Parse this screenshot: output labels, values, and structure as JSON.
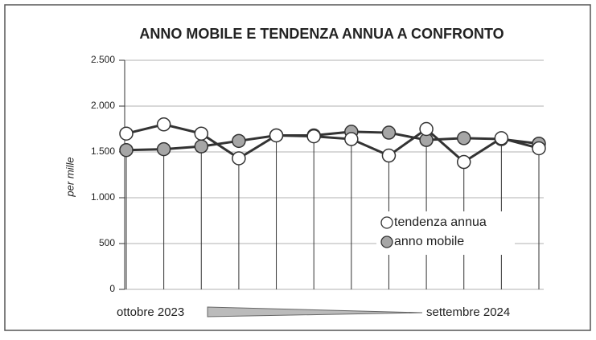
{
  "chart_data": {
    "type": "line",
    "title": "ANNO MOBILE E TENDENZA ANNUA A CONFRONTO",
    "y_label": "per mille",
    "categories": [
      null,
      null,
      null,
      null,
      null,
      null,
      null,
      null,
      null,
      null,
      null,
      null
    ],
    "series": [
      {
        "name": "tendenza annua",
        "color": "#ffffff",
        "values": [
          1700,
          1800,
          1700,
          1430,
          1680,
          1670,
          1640,
          1460,
          1750,
          1390,
          1650,
          1540
        ]
      },
      {
        "name": "anno mobile",
        "color": "#a6a6a6",
        "values": [
          1520,
          1530,
          1560,
          1620,
          1680,
          1680,
          1720,
          1710,
          1630,
          1650,
          1640,
          1590
        ]
      }
    ],
    "ylim": [
      0,
      2500
    ],
    "yticks": [
      0,
      500,
      {
        "value": 1000,
        "label": "1.000"
      },
      {
        "value": 1500,
        "label": "1.500"
      },
      {
        "value": 2000,
        "label": "2.000"
      },
      {
        "value": 2500,
        "label": "2.500"
      }
    ],
    "grid": true,
    "legend": "lower right",
    "annotations": [
      "ottobre 2023",
      "settembre 2024"
    ]
  }
}
